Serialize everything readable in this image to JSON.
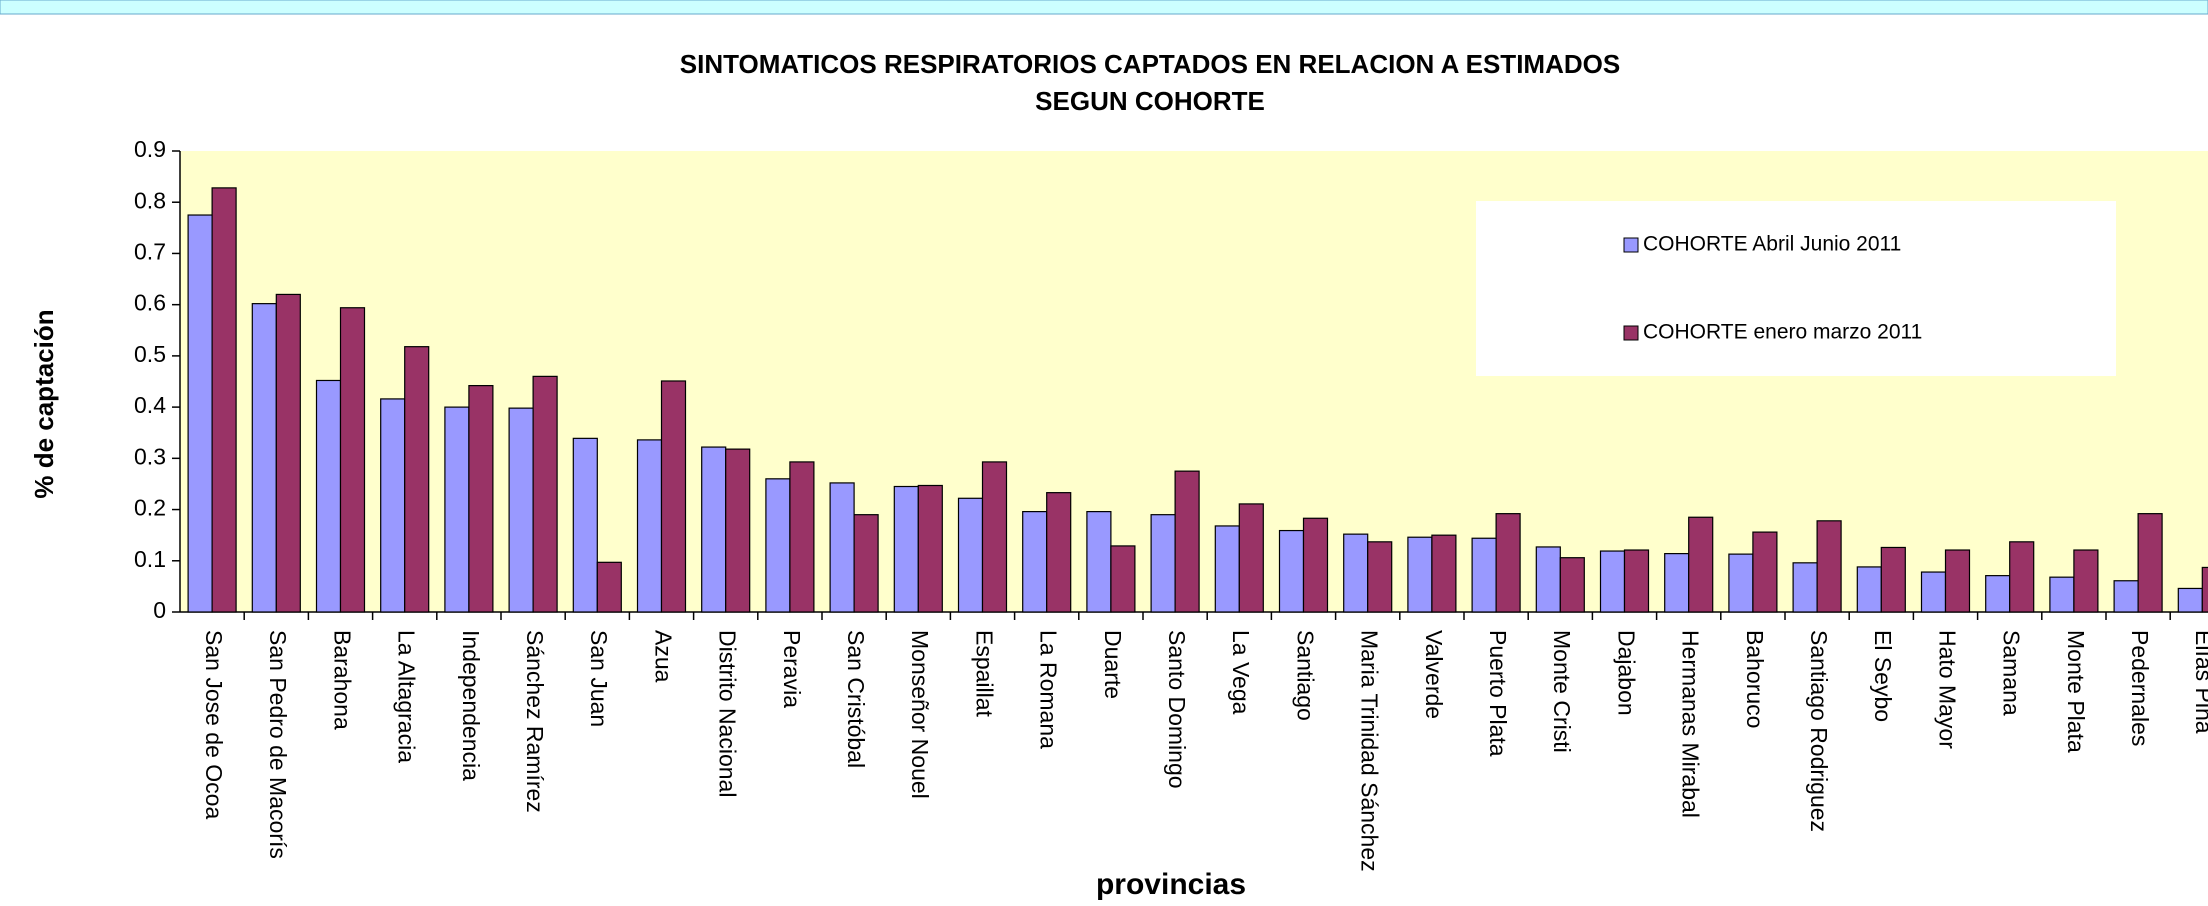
{
  "chart_data": {
    "type": "bar",
    "title": "SINTOMATICOS  RESPIRATORIOS  CAPTADOS  EN RELACION A ESTIMADOS",
    "subtitle": "SEGUN COHORTE",
    "x_label": "provincias",
    "y_label": "% de captación",
    "categories": [
      "San Jose de Ocoa",
      "San Pedro de Macorís",
      "Barahona",
      "La Altagracia",
      "Independencia",
      "Sánchez Ramírez",
      "San Juan",
      "Azua",
      "Distrito Nacional",
      "Peravia",
      "San Cristóbal",
      "Monseñor Nouel",
      "Espaillat",
      "La Romana",
      "Duarte",
      "Santo Domingo",
      "La Vega",
      "Santiago",
      "Maria Trinidad Sánchez",
      "Valverde",
      "Puerto Plata",
      "Monte Cristi",
      "Dajabon",
      "Hermanas Mirabal",
      "Bahoruco",
      "Santiago Rodriguez",
      "El Seybo",
      "Hato Mayor",
      "Samana",
      "Monte Plata",
      "Pedernales",
      "Elías Piña"
    ],
    "series": [
      {
        "name": "COHORTE Abril Junio 2011",
        "color": "#9999ff",
        "values": [
          0.775,
          0.602,
          0.452,
          0.416,
          0.4,
          0.398,
          0.339,
          0.336,
          0.322,
          0.26,
          0.252,
          0.245,
          0.222,
          0.196,
          0.196,
          0.19,
          0.168,
          0.159,
          0.152,
          0.146,
          0.144,
          0.127,
          0.119,
          0.114,
          0.113,
          0.096,
          0.088,
          0.078,
          0.071,
          0.068,
          0.061,
          0.046
        ]
      },
      {
        "name": "COHORTE enero marzo 2011",
        "color": "#993366",
        "values": [
          0.828,
          0.62,
          0.594,
          0.518,
          0.442,
          0.46,
          0.097,
          0.451,
          0.318,
          0.293,
          0.19,
          0.247,
          0.293,
          0.233,
          0.129,
          0.275,
          0.211,
          0.183,
          0.137,
          0.15,
          0.192,
          0.106,
          0.121,
          0.185,
          0.156,
          0.178,
          0.126,
          0.121,
          0.137,
          0.121,
          0.192,
          0.087
        ]
      }
    ],
    "ylim": [
      0,
      0.9
    ],
    "yticks": [
      0,
      0.1,
      0.2,
      0.3,
      0.4,
      0.5,
      0.6,
      0.7,
      0.8,
      0.9
    ],
    "plot_background": "#ffffcc",
    "legend": "top-right"
  }
}
